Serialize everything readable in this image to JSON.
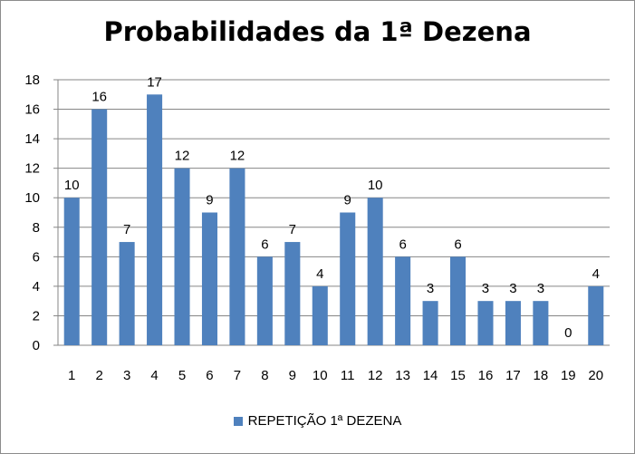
{
  "chart_data": {
    "type": "bar",
    "title": "Probabilidades da 1ª Dezena",
    "categories": [
      "1",
      "2",
      "3",
      "4",
      "5",
      "6",
      "7",
      "8",
      "9",
      "10",
      "11",
      "12",
      "13",
      "14",
      "15",
      "16",
      "17",
      "18",
      "19",
      "20"
    ],
    "series": [
      {
        "name": "REPETIÇÃO 1ª DEZENA",
        "values": [
          10,
          16,
          7,
          17,
          12,
          9,
          12,
          6,
          7,
          4,
          9,
          10,
          6,
          3,
          6,
          3,
          3,
          3,
          0,
          4
        ],
        "color": "#4f81bd"
      }
    ],
    "ylim": [
      0,
      18
    ],
    "yticks": [
      0,
      2,
      4,
      6,
      8,
      10,
      12,
      14,
      16,
      18
    ],
    "grid": true,
    "data_labels": true,
    "legend_position": "bottom"
  }
}
